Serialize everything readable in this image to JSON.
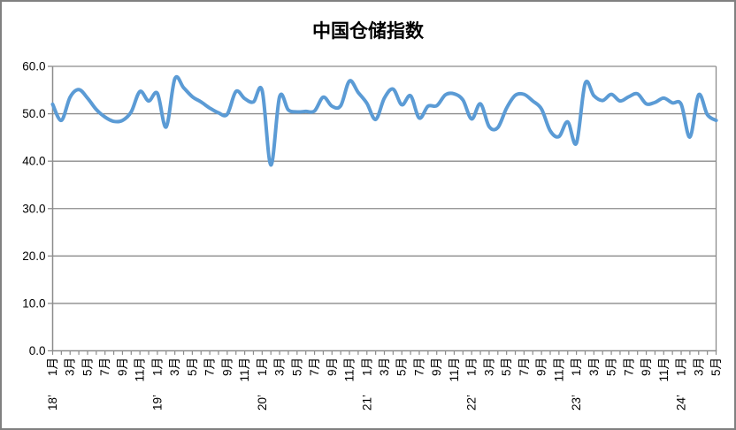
{
  "chart_data": {
    "type": "line",
    "title": "中国仓储指数",
    "xlabel": "",
    "ylabel": "",
    "ylim": [
      0,
      60
    ],
    "y_step": 10,
    "grid": true,
    "legend": "none",
    "line_color": "#5B9BD5",
    "grid_color": "#8C8C8C",
    "x_range": {
      "start_year": 2018,
      "start_month": 1,
      "end_year": 2024,
      "end_month": 5
    },
    "y_tick_labels": [
      "60.0",
      "50.0",
      "40.0",
      "30.0",
      "20.0",
      "10.0",
      "0.0"
    ],
    "month_tick_labels": [
      "1月",
      "3月",
      "5月",
      "7月",
      "9月",
      "11月",
      "1月",
      "3月",
      "5月",
      "7月",
      "9月",
      "11月",
      "1月",
      "3月",
      "5月",
      "7月",
      "9月",
      "11月",
      "1月",
      "3月",
      "5月",
      "7月",
      "9月",
      "11月",
      "1月",
      "3月",
      "5月",
      "7月",
      "9月",
      "11月",
      "1月",
      "3月",
      "5月",
      "7月",
      "9月",
      "11月",
      "1月",
      "3月",
      "5月"
    ],
    "year_tick_labels": [
      "18’",
      "19’",
      "20’",
      "21’",
      "22’",
      "23’",
      "24’"
    ],
    "series": [
      {
        "name": "中国仓储指数",
        "values": [
          52.0,
          48.6,
          53.5,
          55.1,
          53.3,
          50.9,
          49.3,
          48.4,
          48.6,
          50.4,
          54.7,
          52.7,
          54.3,
          47.2,
          57.4,
          55.5,
          53.6,
          52.5,
          51.2,
          50.2,
          49.9,
          54.7,
          53.2,
          52.5,
          54.9,
          39.2,
          53.6,
          50.8,
          50.4,
          50.5,
          50.6,
          53.5,
          51.6,
          51.7,
          56.9,
          54.5,
          52.2,
          48.8,
          53.3,
          55.2,
          51.9,
          53.8,
          49.1,
          51.6,
          51.7,
          54.0,
          54.2,
          52.9,
          48.9,
          52.1,
          47.3,
          47.1,
          51.2,
          53.9,
          54.1,
          52.7,
          51.0,
          46.4,
          45.2,
          48.3,
          43.8,
          56.4,
          53.8,
          52.8,
          54.1,
          52.7,
          53.6,
          54.2,
          52.1,
          52.4,
          53.3,
          52.3,
          52.0,
          45.1,
          54.0,
          49.8,
          48.6
        ]
      }
    ]
  }
}
